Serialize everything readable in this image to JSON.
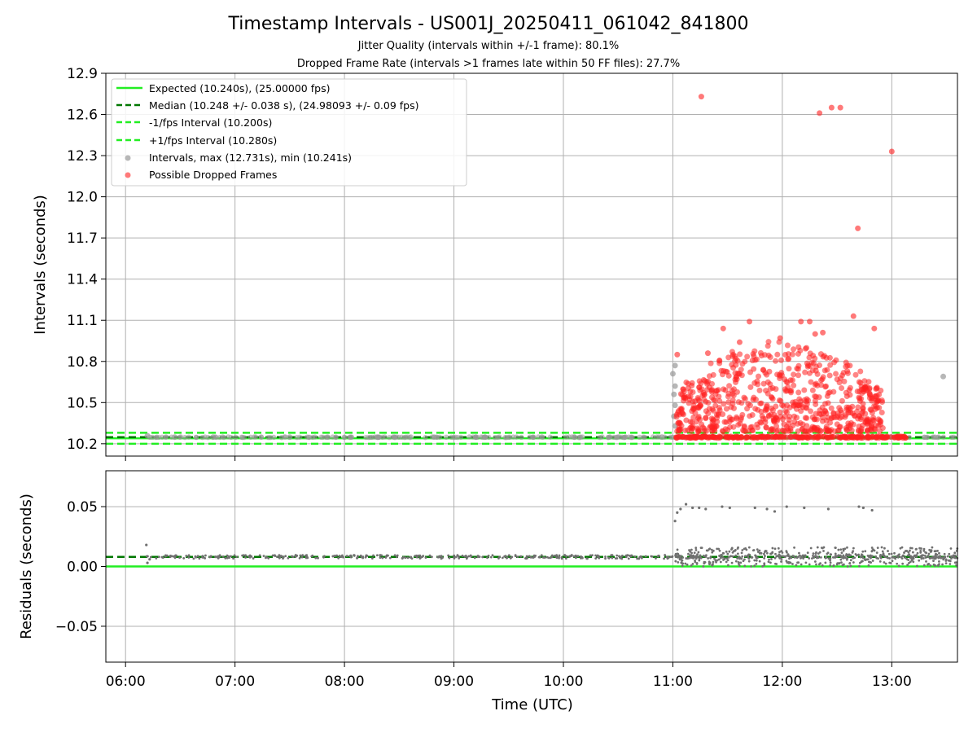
{
  "title": "Timestamp Intervals - US001J_20250411_061042_841800",
  "subtitle_1": "Jitter Quality (intervals within +/-1 frame): 80.1%",
  "subtitle_2": "Dropped Frame Rate (intervals >1 frames late within 50 FF files): 27.7%",
  "colors": {
    "expected": "#22ee22",
    "median": "#007700",
    "fps_band": "#22ee22",
    "intervals": "#999999",
    "dropped": "#ff2020",
    "residuals": "#707070",
    "grid": "#b0b0b0"
  },
  "legend": {
    "placement": "top-left",
    "items": [
      {
        "label": "Expected (10.240s), (25.00000 fps)",
        "kind": "solid-line",
        "color_key": "expected"
      },
      {
        "label": "Median (10.248 +/- 0.038 s), (24.98093 +/- 0.09 fps)",
        "kind": "dashed-line",
        "color_key": "median"
      },
      {
        "label": "-1/fps Interval (10.200s)",
        "kind": "dashed-line",
        "color_key": "fps_band"
      },
      {
        "label": "+1/fps Interval (10.280s)",
        "kind": "dashed-line",
        "color_key": "fps_band"
      },
      {
        "label": "Intervals, max (12.731s), min (10.241s)",
        "kind": "marker",
        "color_key": "intervals"
      },
      {
        "label": "Possible Dropped Frames",
        "kind": "marker",
        "color_key": "dropped"
      }
    ]
  },
  "chart_data": [
    {
      "type": "scatter",
      "xlabel": "",
      "ylabel": "Intervals (seconds)",
      "xlim": [
        5.82,
        13.6
      ],
      "ylim": [
        10.11,
        12.9
      ],
      "x_unit": "hours UTC",
      "yticks": [
        10.2,
        10.5,
        10.8,
        11.1,
        11.4,
        11.7,
        12.0,
        12.3,
        12.6,
        12.9
      ],
      "ytick_labels": [
        "10.2",
        "10.5",
        "10.8",
        "11.1",
        "11.4",
        "11.7",
        "12.0",
        "12.3",
        "12.6",
        "12.9"
      ],
      "grid": true,
      "reference_lines": [
        {
          "name": "Expected",
          "y": 10.24,
          "style": "solid",
          "color_key": "expected"
        },
        {
          "name": "Median",
          "y": 10.248,
          "style": "dashed",
          "color_key": "median"
        },
        {
          "name": "-1/fps Interval",
          "y": 10.2,
          "style": "dashed",
          "color_key": "fps_band"
        },
        {
          "name": "+1/fps Interval",
          "y": 10.28,
          "style": "dashed",
          "color_key": "fps_band"
        }
      ],
      "series": [
        {
          "name": "Intervals",
          "color_key": "intervals",
          "points": [
            [
              6.2,
              10.258
            ],
            [
              6.45,
              10.248
            ],
            [
              6.8,
              10.248
            ],
            [
              7.5,
              10.248
            ],
            [
              8.3,
              10.248
            ],
            [
              9.2,
              10.248
            ],
            [
              10.1,
              10.248
            ],
            [
              10.9,
              10.248
            ],
            [
              11.02,
              10.77
            ],
            [
              11.0,
              10.71
            ],
            [
              11.02,
              10.62
            ],
            [
              11.01,
              10.56
            ],
            [
              11.02,
              10.48
            ],
            [
              11.01,
              10.4
            ],
            [
              11.02,
              10.33
            ],
            [
              13.47,
              10.69
            ]
          ],
          "dense_band": {
            "x_from": 6.18,
            "x_to": 13.6,
            "y_from": 10.245,
            "y_to": 10.25
          }
        },
        {
          "name": "Possible Dropped Frames",
          "color_key": "dropped",
          "points": [
            [
              11.26,
              12.73
            ],
            [
              12.34,
              12.61
            ],
            [
              12.45,
              12.65
            ],
            [
              12.53,
              12.65
            ],
            [
              13.0,
              12.33
            ],
            [
              12.69,
              11.77
            ],
            [
              12.65,
              11.13
            ],
            [
              11.46,
              11.04
            ],
            [
              11.7,
              11.09
            ],
            [
              12.17,
              11.09
            ],
            [
              12.25,
              11.09
            ],
            [
              12.84,
              11.04
            ],
            [
              11.32,
              10.86
            ],
            [
              11.04,
              10.85
            ],
            [
              11.61,
              10.94
            ],
            [
              11.98,
              10.97
            ],
            [
              12.3,
              11.0
            ],
            [
              12.37,
              11.01
            ]
          ],
          "cloud": {
            "x_from": 11.03,
            "x_to": 12.92,
            "y_from": 10.29,
            "y_to": 10.95,
            "baseline_y": 10.248,
            "baseline_x_to": 13.15
          }
        }
      ]
    },
    {
      "type": "scatter",
      "xlabel": "Time (UTC)",
      "ylabel": "Residuals (seconds)",
      "xlim": [
        5.82,
        13.6
      ],
      "ylim": [
        -0.08,
        0.08
      ],
      "xticks": [
        6,
        7,
        8,
        9,
        10,
        11,
        12,
        13
      ],
      "xtick_labels": [
        "06:00",
        "07:00",
        "08:00",
        "09:00",
        "10:00",
        "11:00",
        "12:00",
        "13:00"
      ],
      "yticks": [
        0.05,
        0.0,
        -0.05
      ],
      "ytick_labels": [
        "0.05",
        "0.00",
        "−0.05"
      ],
      "grid": true,
      "reference_lines": [
        {
          "name": "Expected",
          "y": 0.0,
          "style": "solid",
          "color_key": "expected"
        },
        {
          "name": "Median",
          "y": 0.008,
          "style": "dashed",
          "color_key": "median"
        }
      ],
      "series": [
        {
          "name": "Residuals",
          "color_key": "residuals",
          "points": [
            [
              6.19,
              0.018
            ],
            [
              6.2,
              0.003
            ],
            [
              6.22,
              0.006
            ],
            [
              11.02,
              0.038
            ],
            [
              11.04,
              0.045
            ],
            [
              11.07,
              0.048
            ],
            [
              11.12,
              0.052
            ],
            [
              11.18,
              0.049
            ],
            [
              11.24,
              0.049
            ],
            [
              11.3,
              0.048
            ],
            [
              11.45,
              0.05
            ],
            [
              11.52,
              0.049
            ],
            [
              11.75,
              0.049
            ],
            [
              11.86,
              0.048
            ],
            [
              11.93,
              0.046
            ],
            [
              12.04,
              0.05
            ],
            [
              12.2,
              0.049
            ],
            [
              12.42,
              0.048
            ],
            [
              12.7,
              0.05
            ],
            [
              12.74,
              0.049
            ],
            [
              12.82,
              0.047
            ]
          ],
          "dense_band": {
            "x_from": 6.18,
            "x_to": 13.6,
            "y_from": 0.0065,
            "y_to": 0.0095
          },
          "scatter_band": {
            "x_from": 11.02,
            "x_to": 13.6,
            "y_from": 0.0,
            "y_to": 0.016
          }
        }
      ]
    }
  ]
}
